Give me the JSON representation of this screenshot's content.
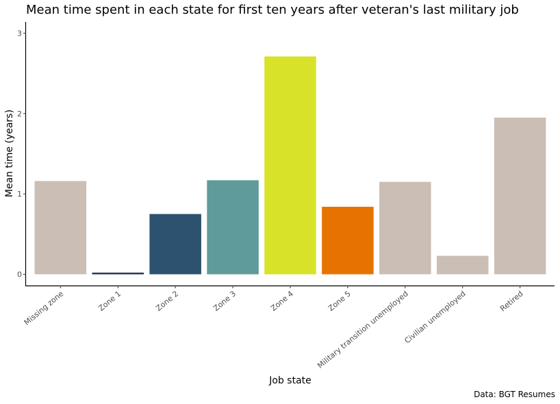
{
  "chart_data": {
    "type": "bar",
    "title": "Mean time spent in each state for first ten years after veteran's last military job",
    "xlabel": "Job state",
    "ylabel": "Mean time (years)",
    "caption": "Data: BGT Resumes",
    "categories": [
      "Missing zone",
      "Zone 1",
      "Zone 2",
      "Zone 3",
      "Zone 4",
      "Zone 5",
      "Military transition unemployed",
      "Civilian unemployed",
      "Retired"
    ],
    "values": [
      1.16,
      0.02,
      0.75,
      1.17,
      2.71,
      0.84,
      1.15,
      0.23,
      1.95
    ],
    "colors": [
      "#cbbeb5",
      "#1e2a4a",
      "#2c5270",
      "#5f9b9b",
      "#d8e228",
      "#e67300",
      "#cbbeb5",
      "#cbbeb5",
      "#cbbeb5"
    ],
    "yticks": [
      0,
      1,
      2,
      3
    ],
    "ylim": [
      -0.14,
      3.14
    ],
    "grid": false,
    "legend": "none"
  }
}
